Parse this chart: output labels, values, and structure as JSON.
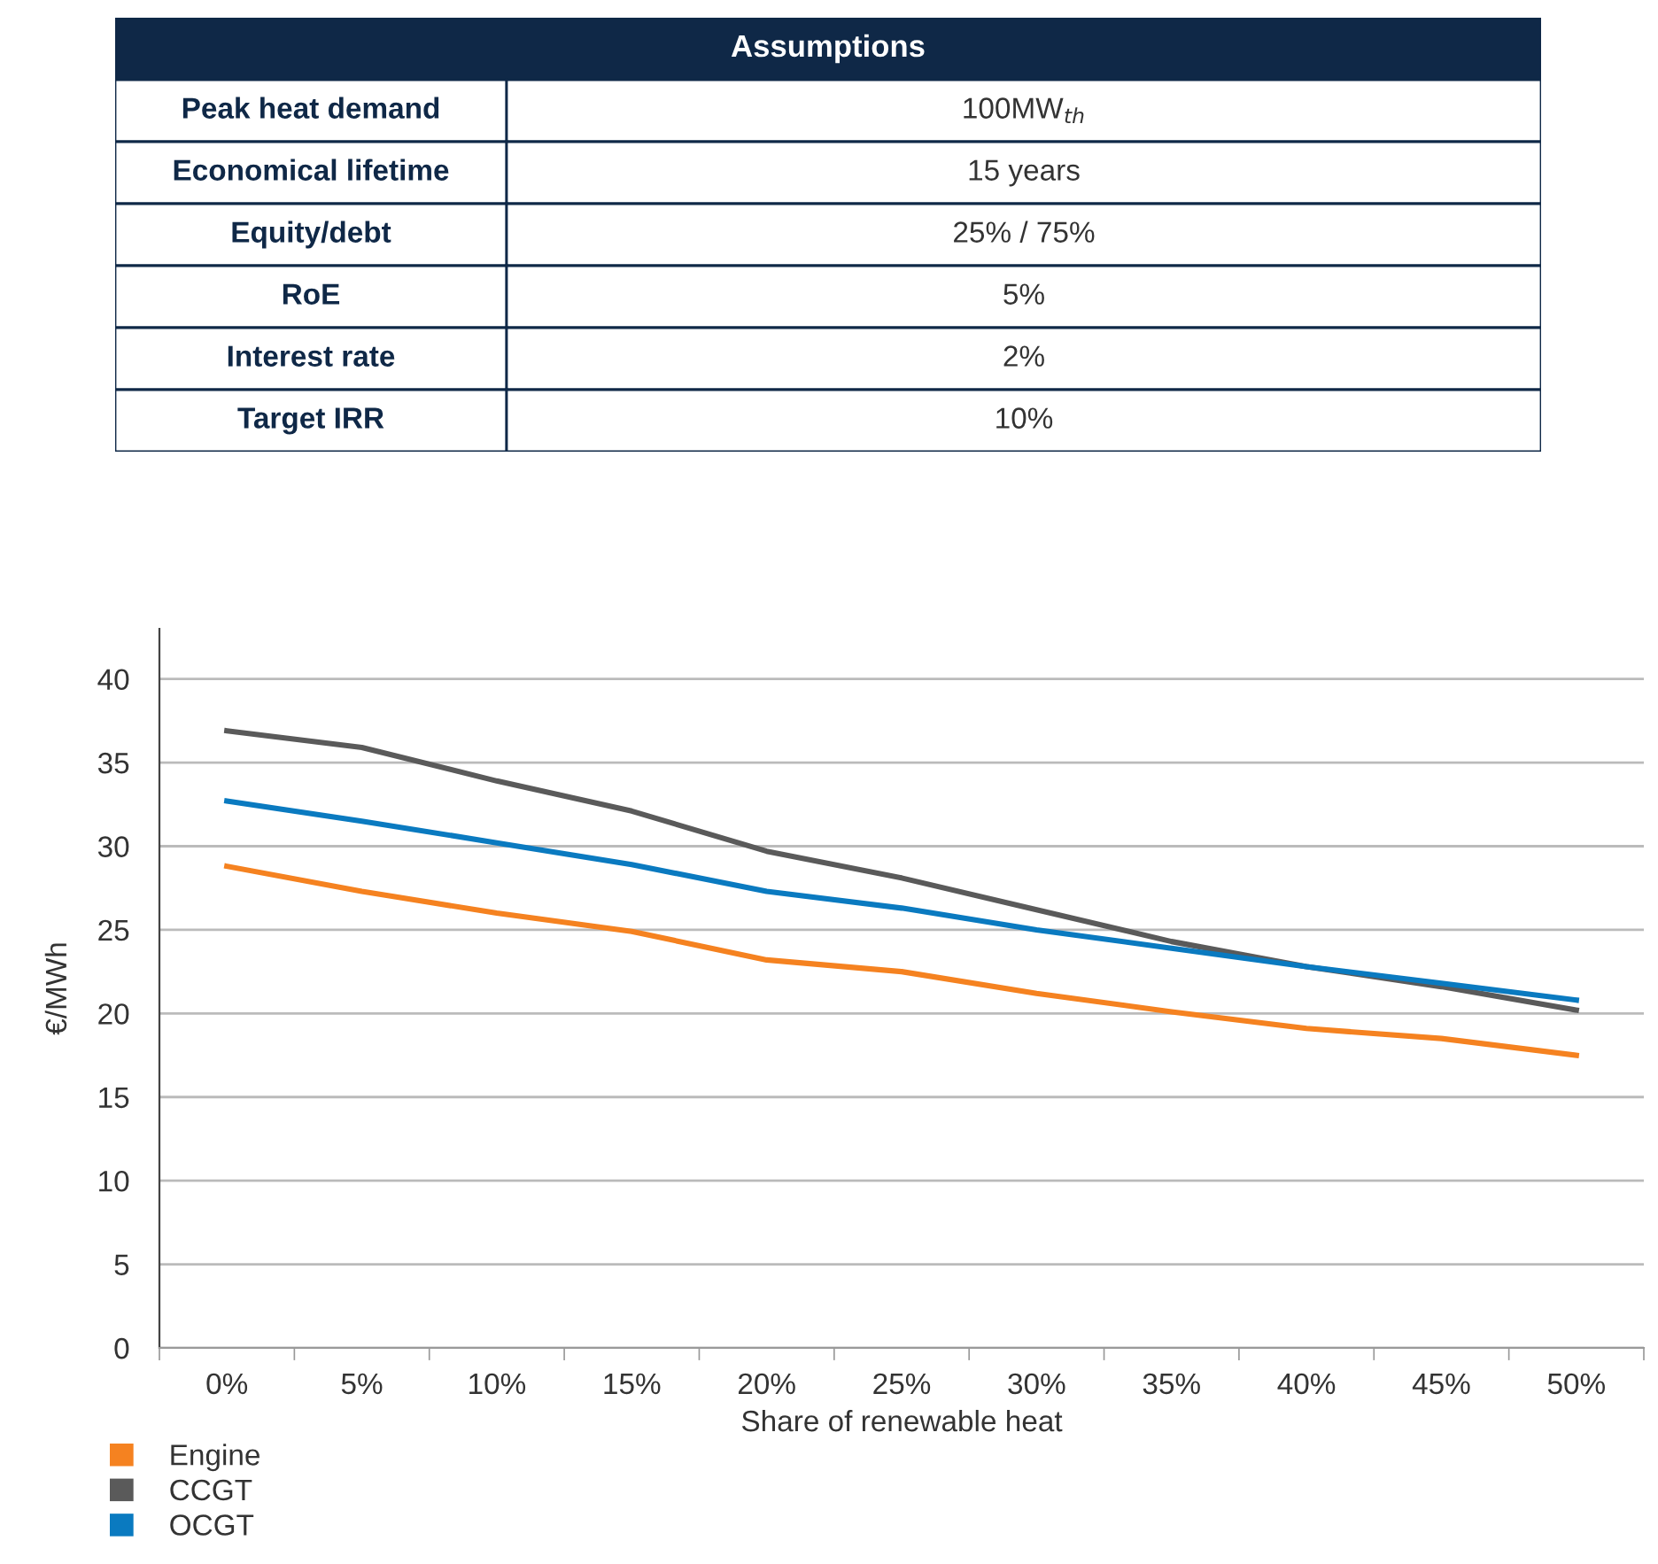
{
  "chart_data": [
    {
      "type": "other",
      "title": "Assumptions",
      "annotations": [
        "Peak heat demand",
        "100MW$_{th}$",
        "Economical lifetime",
        "15 years",
        "Equity/debt",
        "25% / 75%",
        "RoE",
        "5%",
        "Interest rate",
        "2%",
        "Target IRR",
        "10%"
      ],
      "color": "#0f2847"
    },
    {
      "type": "line",
      "xlabel": "Share of renewable heat",
      "ylabel": "€/MWh",
      "categories": [
        "0%",
        "5%",
        "10%",
        "15%",
        "20%",
        "25%",
        "30%",
        "35%",
        "40%",
        "45%",
        "50%"
      ],
      "series": [
        {
          "name": "Engine",
          "color": "#f58220",
          "values": [
            28.8,
            27.3,
            26.0,
            24.9,
            23.2,
            22.5,
            21.2,
            20.1,
            19.1,
            18.5,
            17.5
          ]
        },
        {
          "name": "CCGT",
          "color": "#5a5a5a",
          "values": [
            36.9,
            35.9,
            33.9,
            32.1,
            29.7,
            28.1,
            26.2,
            24.3,
            22.8,
            21.6,
            20.2
          ]
        },
        {
          "name": "OCGT",
          "color": "#0a7ac0",
          "values": [
            32.7,
            31.5,
            30.2,
            28.9,
            27.3,
            26.3,
            25.0,
            23.9,
            22.8,
            21.8,
            20.8
          ]
        }
      ],
      "ylim": [
        0,
        43
      ],
      "yticks": [
        0,
        5,
        10,
        15,
        20,
        25,
        30,
        35,
        40
      ],
      "grid": "y",
      "legend": "bottom left",
      "marker": "none",
      "line_style": "solid"
    }
  ]
}
